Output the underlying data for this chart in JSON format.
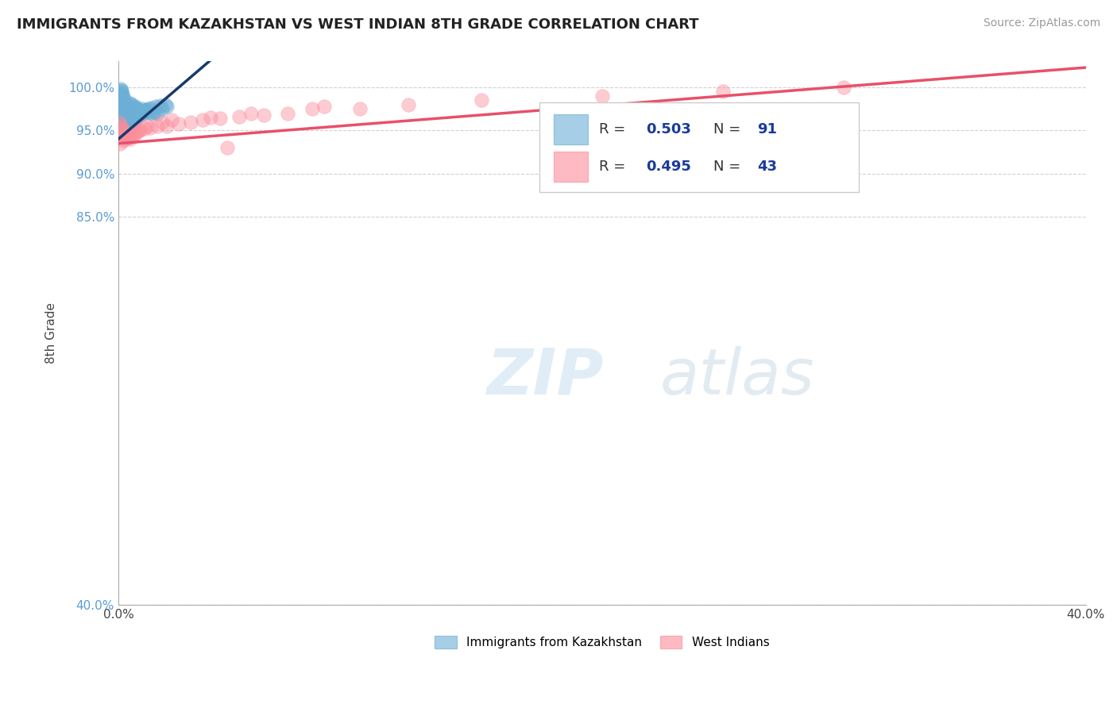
{
  "title": "IMMIGRANTS FROM KAZAKHSTAN VS WEST INDIAN 8TH GRADE CORRELATION CHART",
  "source": "Source: ZipAtlas.com",
  "ylabel": "8th Grade",
  "xmin": 0.0,
  "xmax": 40.0,
  "ymin": 40.0,
  "ymax": 103.0,
  "xtick_positions": [
    0,
    10,
    20,
    30,
    40
  ],
  "xtick_labels": [
    "0.0%",
    "",
    "",
    "",
    "40.0%"
  ],
  "ytick_positions": [
    40.0,
    85.0,
    90.0,
    95.0,
    100.0
  ],
  "ytick_labels": [
    "40.0%",
    "85.0%",
    "90.0%",
    "95.0%",
    "100.0%"
  ],
  "legend_label1": "Immigrants from Kazakhstan",
  "legend_label2": "West Indians",
  "blue_color": "#6baed6",
  "pink_color": "#fc8d9c",
  "blue_line_color": "#1a3a6b",
  "pink_line_color": "#e8506a",
  "blue_scatter_x": [
    0.05,
    0.05,
    0.08,
    0.08,
    0.1,
    0.1,
    0.1,
    0.1,
    0.12,
    0.12,
    0.12,
    0.15,
    0.15,
    0.15,
    0.15,
    0.18,
    0.18,
    0.18,
    0.2,
    0.2,
    0.2,
    0.2,
    0.22,
    0.22,
    0.25,
    0.25,
    0.25,
    0.28,
    0.28,
    0.3,
    0.3,
    0.3,
    0.35,
    0.35,
    0.38,
    0.4,
    0.4,
    0.45,
    0.45,
    0.5,
    0.5,
    0.55,
    0.55,
    0.6,
    0.65,
    0.7,
    0.75,
    0.8,
    0.85,
    0.9,
    0.95,
    1.0,
    1.1,
    1.2,
    1.3,
    1.4,
    1.5,
    1.6,
    1.8,
    2.0,
    0.05,
    0.06,
    0.07,
    0.09,
    0.11,
    0.13,
    0.16,
    0.19,
    0.21,
    0.23,
    0.26,
    0.32,
    0.42,
    0.52,
    0.62,
    0.72,
    0.82,
    0.92,
    1.05,
    1.15,
    1.25,
    1.35,
    1.55,
    1.75,
    1.95,
    0.08,
    0.14,
    0.17,
    0.24,
    0.6
  ],
  "blue_scatter_y": [
    97.5,
    99.0,
    99.2,
    98.5,
    99.8,
    99.5,
    98.8,
    97.8,
    99.6,
    99.1,
    97.2,
    99.4,
    98.7,
    97.5,
    96.5,
    98.3,
    97.2,
    96.2,
    99.0,
    98.2,
    97.0,
    96.0,
    97.8,
    96.8,
    98.5,
    97.5,
    96.5,
    97.3,
    96.3,
    98.0,
    97.0,
    96.0,
    97.5,
    96.5,
    97.2,
    97.8,
    96.8,
    98.0,
    97.0,
    98.2,
    97.2,
    98.0,
    97.0,
    97.5,
    97.3,
    97.8,
    97.6,
    97.4,
    97.2,
    97.0,
    96.8,
    97.5,
    97.3,
    97.2,
    97.1,
    97.0,
    97.2,
    97.0,
    97.5,
    97.8,
    96.0,
    96.5,
    96.8,
    96.2,
    95.8,
    96.0,
    95.5,
    96.0,
    95.8,
    96.2,
    95.8,
    96.0,
    96.5,
    96.2,
    96.0,
    96.5,
    96.8,
    97.0,
    97.2,
    97.4,
    97.5,
    97.6,
    97.8,
    97.9,
    98.0,
    94.5,
    94.8,
    95.0,
    95.5,
    95.5
  ],
  "pink_scatter_x": [
    0.05,
    0.1,
    0.15,
    0.18,
    0.22,
    0.28,
    0.35,
    0.42,
    0.5,
    0.6,
    0.75,
    0.9,
    1.1,
    1.3,
    1.6,
    2.0,
    2.5,
    3.0,
    3.5,
    4.2,
    5.0,
    6.0,
    7.0,
    8.0,
    10.0,
    12.0,
    15.0,
    20.0,
    25.0,
    30.0,
    0.08,
    0.2,
    0.3,
    0.45,
    0.65,
    0.85,
    1.2,
    1.8,
    2.2,
    3.8,
    5.5,
    8.5,
    4.5
  ],
  "pink_scatter_y": [
    96.0,
    95.5,
    95.0,
    95.2,
    94.8,
    94.5,
    94.3,
    94.2,
    94.0,
    94.5,
    94.8,
    95.0,
    95.2,
    95.3,
    95.5,
    95.5,
    95.8,
    96.0,
    96.2,
    96.4,
    96.6,
    96.8,
    97.0,
    97.5,
    97.5,
    98.0,
    98.5,
    99.0,
    99.5,
    100.0,
    93.5,
    93.8,
    94.0,
    94.2,
    94.5,
    95.0,
    95.5,
    96.0,
    96.2,
    96.5,
    97.0,
    97.8,
    93.0
  ]
}
